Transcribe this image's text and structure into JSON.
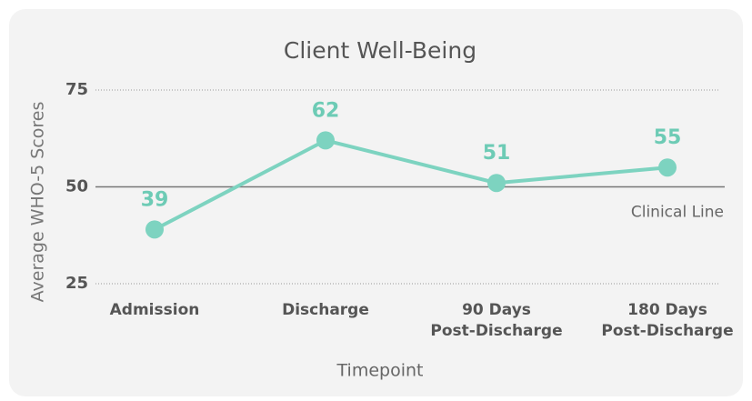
{
  "chart_data": {
    "type": "line",
    "title": "Client Well-Being",
    "x_label": "Timepoint",
    "y_label": "Average WHO-5 Scores",
    "categories": [
      "Admission",
      "Discharge",
      "90 Days\nPost-Discharge",
      "180 Days\nPost-Discharge"
    ],
    "series": [
      {
        "name": "WHO-5",
        "color": "#7dd3c0",
        "values": [
          39,
          62,
          51,
          55
        ]
      }
    ],
    "ylim": [
      23,
      78
    ],
    "yticks": [
      25,
      50,
      75
    ],
    "grid": true,
    "reference_line": {
      "value": 50,
      "label": "Clinical Line"
    }
  }
}
